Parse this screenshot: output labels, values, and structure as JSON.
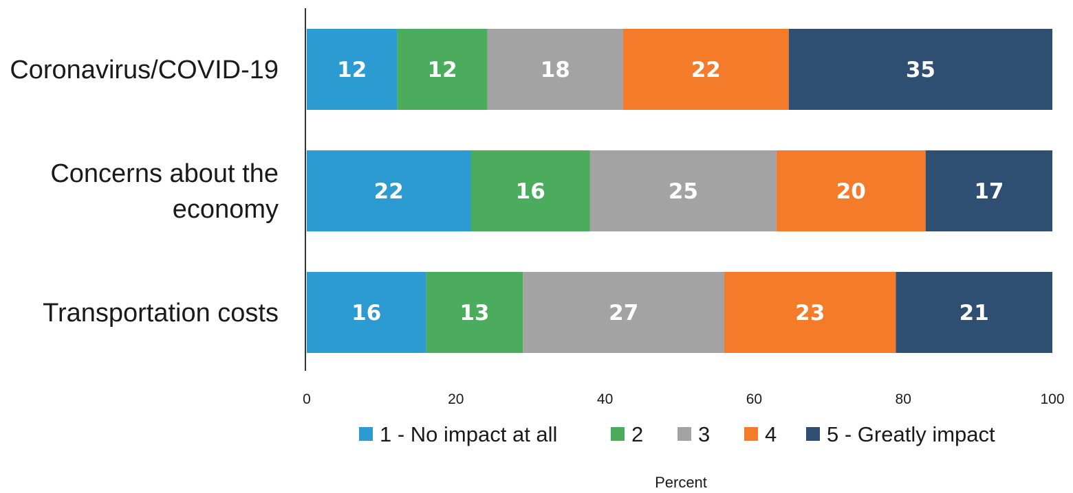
{
  "chart_data": {
    "type": "bar",
    "orientation": "horizontal",
    "stacked": true,
    "categories": [
      [
        "Coronavirus/COVID-19"
      ],
      [
        "Concerns about the",
        "economy"
      ],
      [
        "Transportation costs"
      ]
    ],
    "series": [
      {
        "name": "1 - No impact at all",
        "color": "#2b9bd1",
        "values": [
          12,
          22,
          16
        ]
      },
      {
        "name": "2",
        "color": "#4aac5c",
        "values": [
          12,
          16,
          13
        ]
      },
      {
        "name": "3",
        "color": "#a3a3a3",
        "values": [
          18,
          25,
          27
        ]
      },
      {
        "name": "4",
        "color": "#f47b2a",
        "values": [
          22,
          20,
          23
        ]
      },
      {
        "name": "5 - Greatly impact",
        "color": "#2e4f72",
        "values": [
          35,
          17,
          21
        ]
      }
    ],
    "xlim": [
      0,
      100
    ],
    "xticks": [
      "0",
      "20",
      "40",
      "60",
      "80",
      "100"
    ],
    "xlabel": "Percent",
    "legend_position": "bottom",
    "grid": false
  }
}
